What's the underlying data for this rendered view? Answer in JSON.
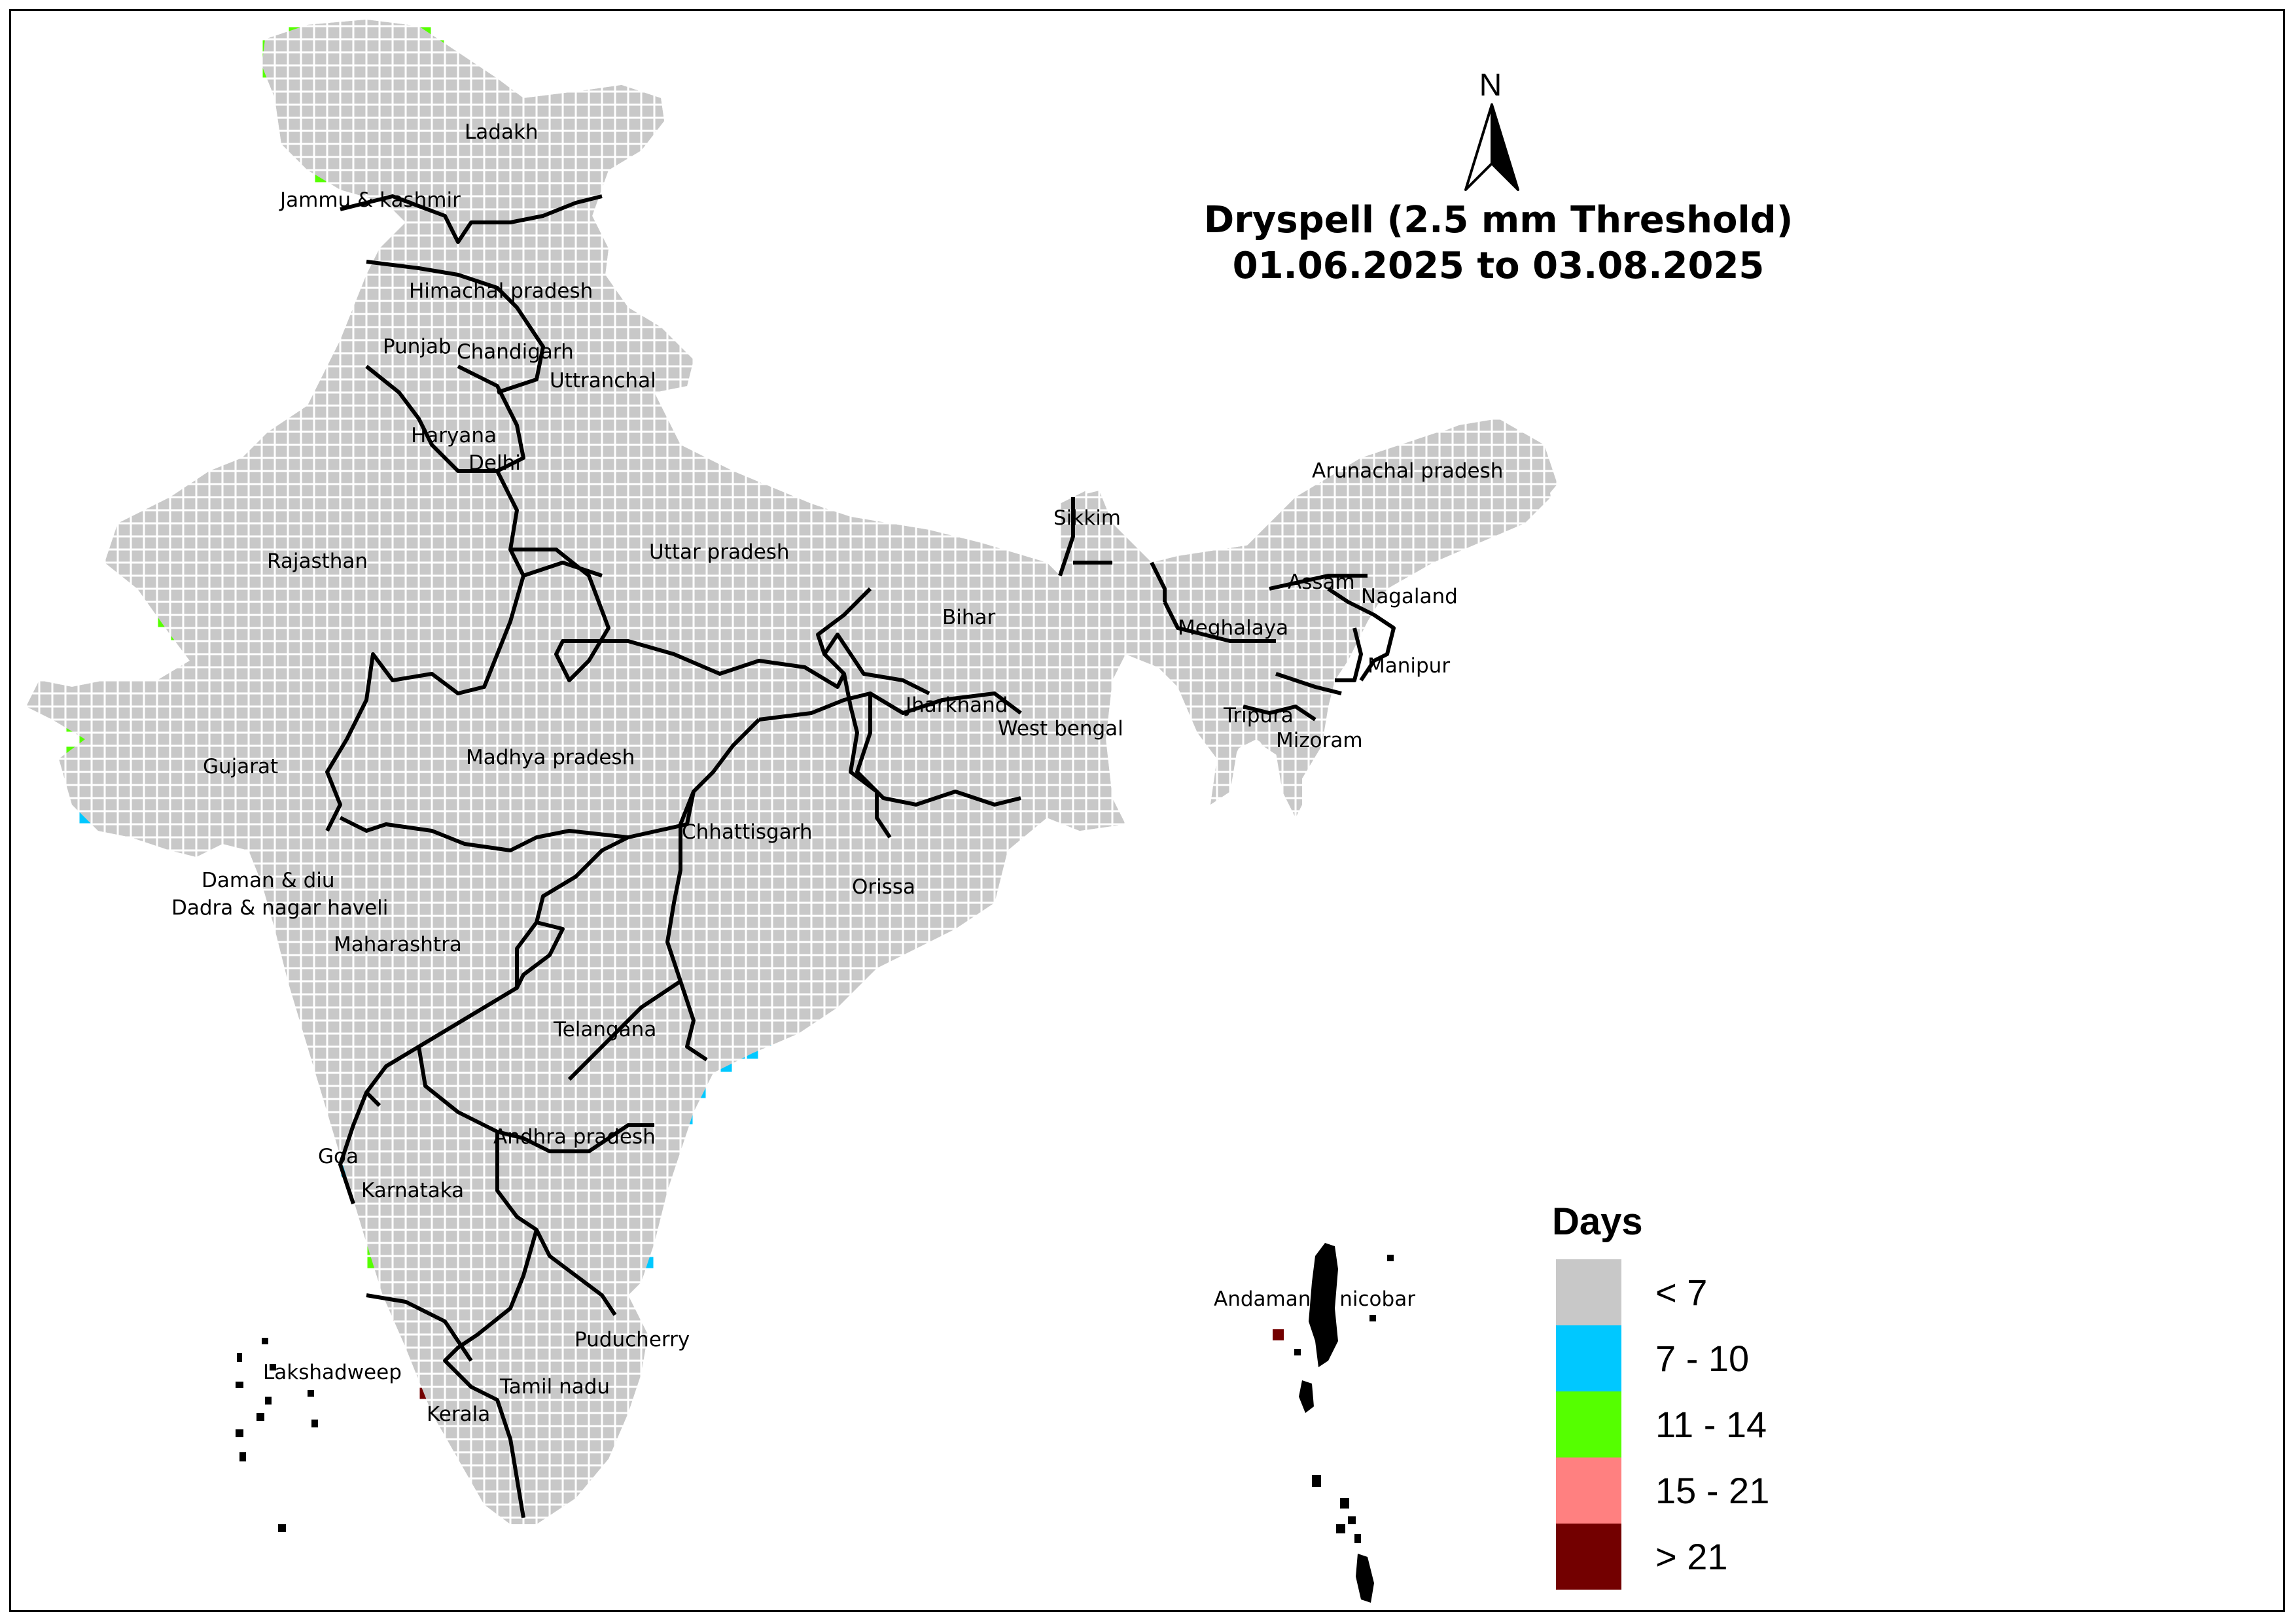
{
  "title": {
    "line1": "Dryspell (2.5 mm Threshold)",
    "line2": "01.06.2025 to 03.08.2025"
  },
  "north_arrow": {
    "label": "N",
    "icon": "north-arrow-icon"
  },
  "legend": {
    "title": "Days",
    "classes": [
      {
        "key": "lt7",
        "label": "< 7",
        "color": "#c8c8c8"
      },
      {
        "key": "d7_10",
        "label": "7 - 10",
        "color": "#00c8ff"
      },
      {
        "key": "d11_14",
        "label": "11 - 14",
        "color": "#55ff00"
      },
      {
        "key": "d15_21",
        "label": "15 - 21",
        "color": "#ff8080"
      },
      {
        "key": "gt21",
        "label": "> 21",
        "color": "#730000"
      }
    ]
  },
  "state_labels": [
    "Ladakh",
    "Jammu & kashmir",
    "Himachal pradesh",
    "Punjab",
    "Chandigarh",
    "Uttranchal",
    "Haryana",
    "Delhi",
    "Rajasthan",
    "Uttar pradesh",
    "Sikkim",
    "Arunachal pradesh",
    "Assam",
    "Nagaland",
    "Meghalaya",
    "Bihar",
    "Manipur",
    "Tripura",
    "Mizoram",
    "Jharkhand",
    "West bengal",
    "Gujarat",
    "Madhya pradesh",
    "Chhattisgarh",
    "Orissa",
    "Daman & diu",
    "Dadra & nagar haveli",
    "Maharashtra",
    "Telangana",
    "Andhra pradesh",
    "Goa",
    "Karnataka",
    "Puducherry",
    "Lakshadweep",
    "Tamil nadu",
    "Kerala",
    "Andaman & nicobar"
  ]
}
